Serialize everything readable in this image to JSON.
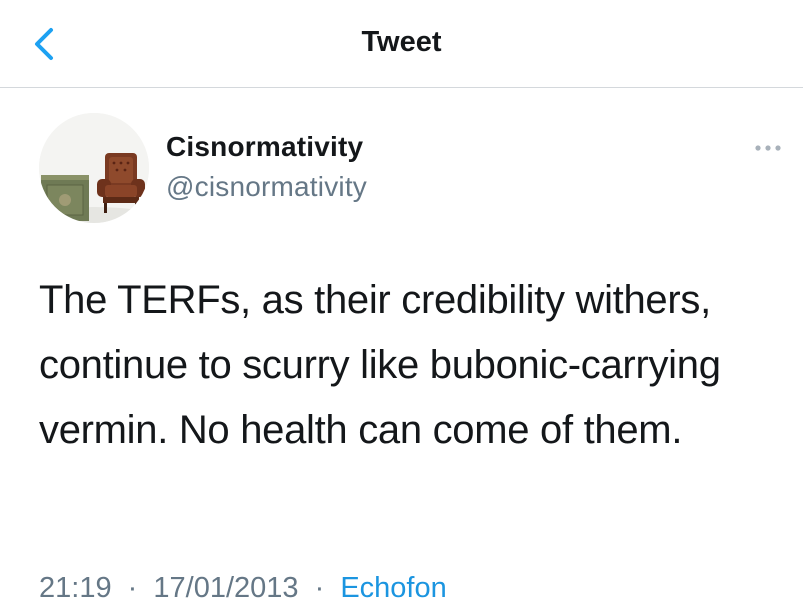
{
  "header": {
    "title": "Tweet",
    "back_icon": "chevron-left-icon",
    "accent_color": "#1da1f2"
  },
  "tweet": {
    "author": {
      "display_name": "Cisnormativity",
      "handle": "@cisnormativity",
      "avatar_icon": "armchair-avatar-image"
    },
    "more_icon": "more-horizontal-icon",
    "text": "The TERFs, as their credibility withers, continue to scurry like bubonic-carrying vermin. No health can come of them.",
    "time": "21:19",
    "date": "17/01/2013",
    "separator": "·",
    "source": "Echofon",
    "source_color": "#1b95e0"
  }
}
